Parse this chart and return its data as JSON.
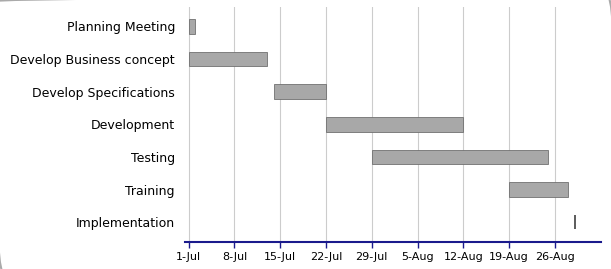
{
  "tasks": [
    "Planning Meeting",
    "Develop Business concept",
    "Develop Specifications",
    "Development",
    "Testing",
    "Training",
    "Implementation"
  ],
  "bar_starts": [
    0,
    0,
    13,
    21,
    28,
    49,
    59
  ],
  "bar_durations": [
    1,
    12,
    8,
    21,
    27,
    9,
    1
  ],
  "x_tick_positions": [
    0,
    7,
    14,
    21,
    28,
    35,
    42,
    49,
    56
  ],
  "x_tick_labels": [
    "1-Jul",
    "8-Jul",
    "15-Jul",
    "22-Jul",
    "29-Jul",
    "5-Aug",
    "12-Aug",
    "19-Aug",
    "26-Aug"
  ],
  "bar_color": "#A8A8A8",
  "bar_edgecolor": "#707070",
  "bar_height": 0.45,
  "xlim": [
    -0.5,
    63
  ],
  "ylim": [
    -0.6,
    6.6
  ],
  "background_color": "#ffffff",
  "grid_color": "#cccccc",
  "axis_line_color": "#1a1a8c",
  "ytick_fontsize": 9,
  "xtick_fontsize": 8,
  "implementation_line_x": 59
}
